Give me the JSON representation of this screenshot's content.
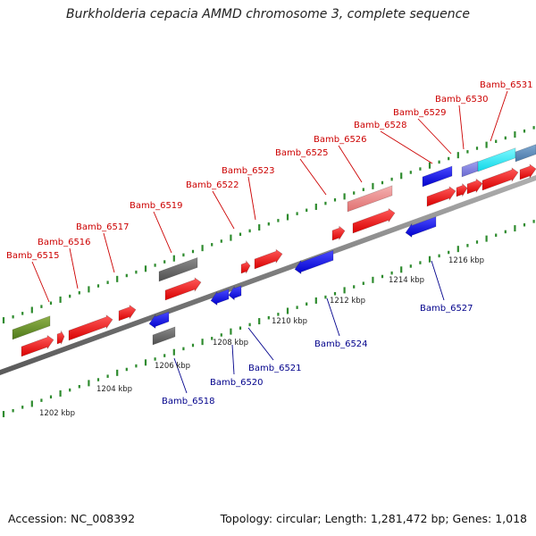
{
  "title": "Burkholderia cepacia AMMD chromosome 3, complete sequence",
  "footer": {
    "accession": "Accession: NC_008392",
    "summary": "Topology: circular; Length: 1,281,472 bp; Genes: 1,018"
  },
  "colors": {
    "backbone": "#8c8c8c",
    "tick": "#2e8b2e",
    "forward_label": "#cc0000",
    "reverse_label": "#00008b",
    "leader_forward": "#cc0000",
    "leader_reverse": "#00008b"
  },
  "forward_labels": [
    "Bamb_6515",
    "Bamb_6516",
    "Bamb_6517",
    "Bamb_6519",
    "Bamb_6522",
    "Bamb_6523",
    "Bamb_6525",
    "Bamb_6526",
    "Bamb_6528",
    "Bamb_6529",
    "Bamb_6530",
    "Bamb_6531"
  ],
  "reverse_labels": [
    "Bamb_6518",
    "Bamb_6520",
    "Bamb_6521",
    "Bamb_6524",
    "Bamb_6527"
  ],
  "scale_labels": [
    "1202 kbp",
    "1204 kbp",
    "1206 kbp",
    "1208 kbp",
    "1210 kbp",
    "1212 kbp",
    "1214 kbp",
    "1216 kbp"
  ]
}
